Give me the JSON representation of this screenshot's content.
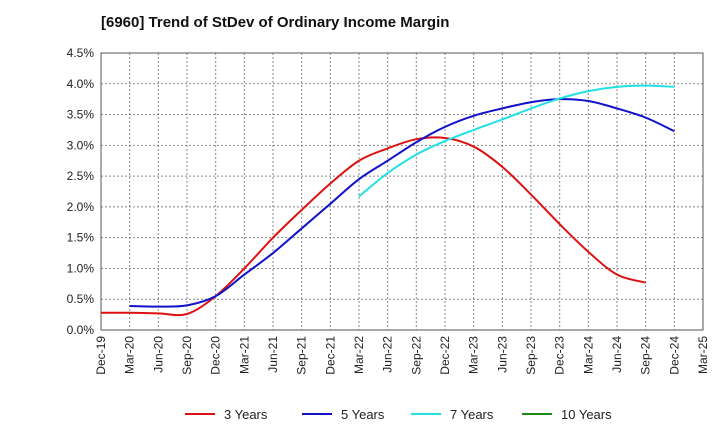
{
  "chart_data": {
    "type": "line",
    "title": "[6960]  Trend of StDev of Ordinary Income Margin",
    "xlabel": "",
    "ylabel": "",
    "y_unit": "%",
    "ylim": [
      0,
      4.5
    ],
    "y_ticks": [
      "0.0%",
      "0.5%",
      "1.0%",
      "1.5%",
      "2.0%",
      "2.5%",
      "3.0%",
      "3.5%",
      "4.0%",
      "4.5%"
    ],
    "x_ticks": [
      "Dec-19",
      "Mar-20",
      "Jun-20",
      "Sep-20",
      "Dec-20",
      "Mar-21",
      "Jun-21",
      "Sep-21",
      "Dec-21",
      "Mar-22",
      "Jun-22",
      "Sep-22",
      "Dec-22",
      "Mar-23",
      "Jun-23",
      "Sep-23",
      "Dec-23",
      "Mar-24",
      "Jun-24",
      "Sep-24",
      "Dec-24",
      "Mar-25"
    ],
    "grid": true,
    "legend_position": "bottom",
    "series": [
      {
        "name": "3 Years",
        "color": "#dd1111",
        "values": [
          0.28,
          0.28,
          0.27,
          0.26,
          0.55,
          1.0,
          1.5,
          1.95,
          2.38,
          2.75,
          2.95,
          3.1,
          3.12,
          2.98,
          2.65,
          2.2,
          1.72,
          1.27,
          0.9,
          0.77,
          null,
          null
        ]
      },
      {
        "name": "5 Years",
        "color": "#1111cc",
        "values": [
          null,
          0.39,
          0.38,
          0.4,
          0.55,
          0.9,
          1.25,
          1.65,
          2.05,
          2.45,
          2.75,
          3.05,
          3.3,
          3.48,
          3.6,
          3.7,
          3.75,
          3.72,
          3.6,
          3.45,
          3.23,
          null
        ]
      },
      {
        "name": "7 Years",
        "color": "#22e0e6",
        "values": [
          null,
          null,
          null,
          null,
          null,
          null,
          null,
          null,
          null,
          2.17,
          2.55,
          2.85,
          3.07,
          3.25,
          3.42,
          3.6,
          3.76,
          3.88,
          3.95,
          3.97,
          3.95,
          null
        ]
      },
      {
        "name": "10 Years",
        "color": "#1e8a1e",
        "values": [
          null,
          null,
          null,
          null,
          null,
          null,
          null,
          null,
          null,
          null,
          null,
          null,
          null,
          null,
          null,
          null,
          null,
          null,
          null,
          null,
          null,
          null
        ]
      }
    ]
  }
}
